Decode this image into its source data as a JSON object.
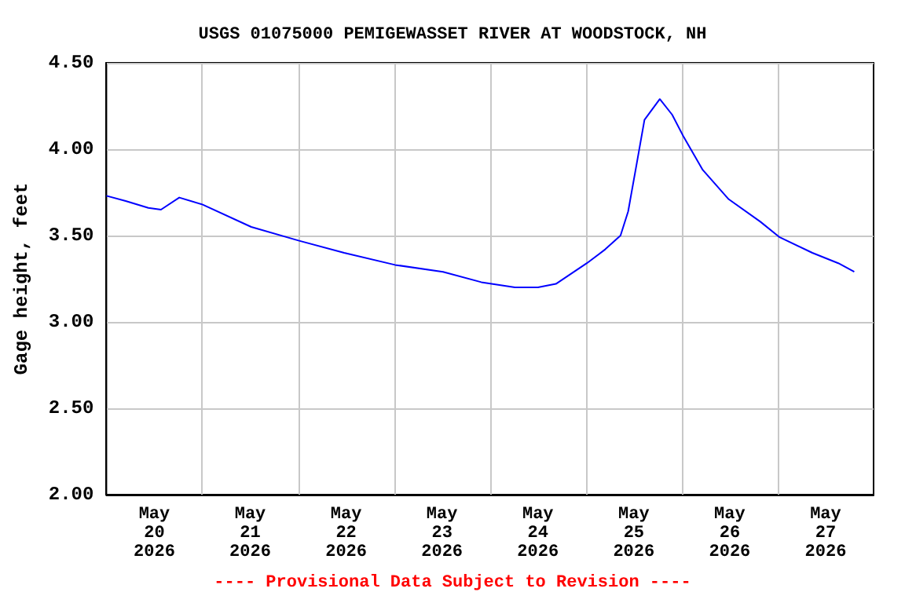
{
  "chart_data": {
    "type": "line",
    "title": "USGS 01075000 PEMIGEWASSET RIVER AT WOODSTOCK, NH",
    "ylabel": "Gage height, feet",
    "annotations": [
      "---- Provisional Data Subject to Revision ----"
    ],
    "series": [
      {
        "color": "#0000ff",
        "x": [
          "2026-05-20T00:00",
          "2026-05-20T04:50",
          "2026-05-20T10:30",
          "2026-05-20T13:40",
          "2026-05-20T18:15",
          "2026-05-21T00:00",
          "2026-05-21T12:15",
          "2026-05-22T00:15",
          "2026-05-22T11:30",
          "2026-05-23T00:15",
          "2026-05-23T12:15",
          "2026-05-23T21:50",
          "2026-05-24T06:15",
          "2026-05-24T12:00",
          "2026-05-24T16:30",
          "2026-05-25T00:15",
          "2026-05-25T04:50",
          "2026-05-25T08:40",
          "2026-05-25T10:35",
          "2026-05-25T12:45",
          "2026-05-25T14:40",
          "2026-05-25T18:30",
          "2026-05-25T21:35",
          "2026-05-26T00:30",
          "2026-05-26T05:15",
          "2026-05-26T11:45",
          "2026-05-26T19:40",
          "2026-05-27T00:30",
          "2026-05-27T08:40",
          "2026-05-27T15:10",
          "2026-05-27T19:10"
        ],
        "values": [
          3.73,
          3.7,
          3.66,
          3.65,
          3.72,
          3.68,
          3.55,
          3.47,
          3.4,
          3.33,
          3.29,
          3.23,
          3.2,
          3.2,
          3.22,
          3.34,
          3.42,
          3.5,
          3.64,
          3.92,
          4.17,
          4.29,
          4.2,
          4.07,
          3.88,
          3.71,
          3.58,
          3.49,
          3.4,
          3.34,
          3.29
        ]
      }
    ],
    "xlim": [
      "2026-05-20",
      "2026-05-28"
    ],
    "xticks": [
      {
        "value": "2026-05-20T12:00",
        "label": "May\n20\n2026"
      },
      {
        "value": "2026-05-21T12:00",
        "label": "May\n21\n2026"
      },
      {
        "value": "2026-05-22T12:00",
        "label": "May\n22\n2026"
      },
      {
        "value": "2026-05-23T12:00",
        "label": "May\n23\n2026"
      },
      {
        "value": "2026-05-24T12:00",
        "label": "May\n24\n2026"
      },
      {
        "value": "2026-05-25T12:00",
        "label": "May\n25\n2026"
      },
      {
        "value": "2026-05-26T12:00",
        "label": "May\n26\n2026"
      },
      {
        "value": "2026-05-27T12:00",
        "label": "May\n27\n2026"
      },
      {
        "value": "2026-05-21",
        "label": null
      },
      {
        "value": "2026-05-22",
        "label": null
      },
      {
        "value": "2026-05-23",
        "label": null
      },
      {
        "value": "2026-05-24",
        "label": null
      },
      {
        "value": "2026-05-25",
        "label": null
      },
      {
        "value": "2026-05-26",
        "label": null
      },
      {
        "value": "2026-05-27",
        "label": null
      }
    ],
    "ylim": [
      2,
      4.5
    ],
    "yticks": [
      {
        "value": 2,
        "label": "2.00"
      },
      {
        "value": 2.5,
        "label": "2.50"
      },
      {
        "value": 3,
        "label": "3.00"
      },
      {
        "value": 3.5,
        "label": "3.50"
      },
      {
        "value": 4,
        "label": "4.00"
      },
      {
        "value": 4.5,
        "label": "4.50"
      }
    ],
    "grid": true,
    "marker": "none",
    "line_style": "solid"
  }
}
